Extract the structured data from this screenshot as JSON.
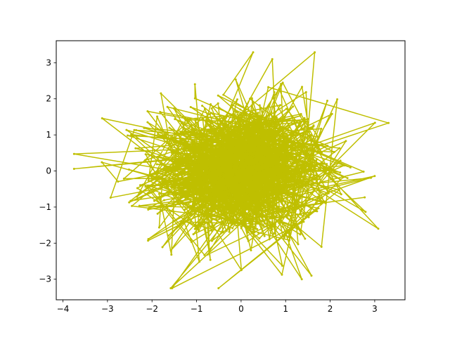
{
  "chart_data": {
    "type": "line",
    "title": "",
    "xlabel": "",
    "ylabel": "",
    "xlim": [
      -4.15,
      3.68
    ],
    "ylim": [
      -3.57,
      3.61
    ],
    "xticks": [
      -4,
      -3,
      -2,
      -1,
      0,
      1,
      2,
      3
    ],
    "yticks": [
      -3,
      -2,
      -1,
      0,
      1,
      2,
      3
    ],
    "xtick_labels": [
      "−4",
      "−3",
      "−2",
      "−1",
      "0",
      "1",
      "2",
      "3"
    ],
    "ytick_labels": [
      "−3",
      "−2",
      "−1",
      "0",
      "1",
      "2",
      "3"
    ],
    "grid": false,
    "legend": "none",
    "series": [
      {
        "color": "#bfbf00",
        "marker": "dot",
        "points_description": "random walk of standard-normal (x, y) pairs connected in order",
        "n_points": 1000,
        "seed_note": "deterministic pseudo-random normal samples",
        "extreme_points": [
          [
            -3.75,
            0.06
          ],
          [
            -3.12,
            1.46
          ],
          [
            3.31,
            1.33
          ],
          [
            3.08,
            -1.6
          ],
          [
            -1.58,
            -3.25
          ],
          [
            0.27,
            3.29
          ],
          [
            0.7,
            3.1
          ],
          [
            1.58,
            -2.9
          ],
          [
            -2.93,
            -0.74
          ],
          [
            2.75,
            -0.02
          ],
          [
            -2.1,
            1.35
          ],
          [
            -1.8,
            2.15
          ]
        ]
      }
    ]
  }
}
